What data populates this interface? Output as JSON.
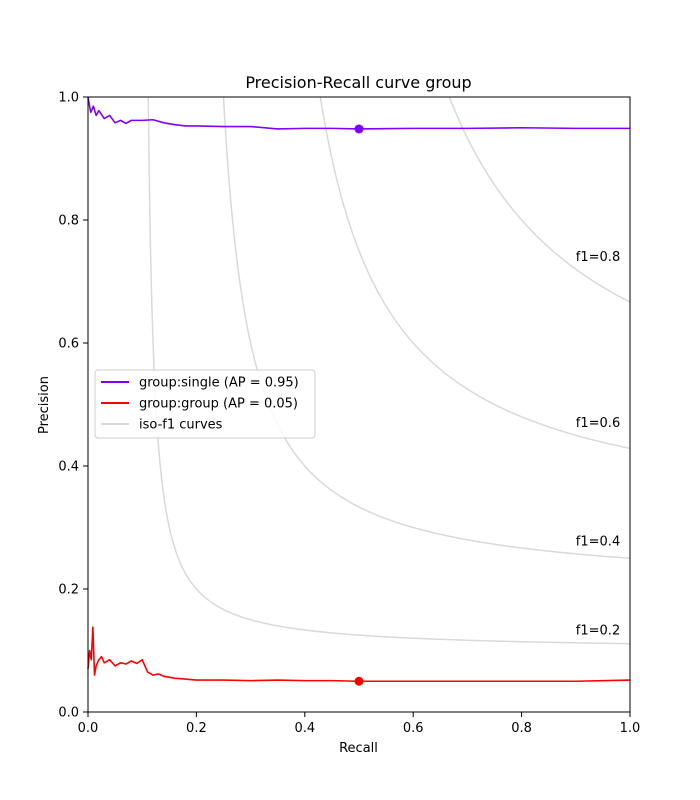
{
  "chart_data": {
    "type": "line",
    "title": "Precision-Recall curve group",
    "xlabel": "Recall",
    "ylabel": "Precision",
    "xlim": [
      0.0,
      1.0
    ],
    "ylim": [
      0.0,
      1.0
    ],
    "x_ticks": [
      "0.0",
      "0.2",
      "0.4",
      "0.6",
      "0.8",
      "1.0"
    ],
    "y_ticks": [
      "0.0",
      "0.2",
      "0.4",
      "0.6",
      "0.8",
      "1.0"
    ],
    "grid": false,
    "legend_position": "center-left",
    "series": [
      {
        "name": "group:single (AP = 0.95)",
        "color": "#8000ff",
        "x": [
          0.0,
          0.005,
          0.01,
          0.015,
          0.02,
          0.03,
          0.04,
          0.05,
          0.06,
          0.07,
          0.08,
          0.1,
          0.12,
          0.14,
          0.16,
          0.18,
          0.2,
          0.25,
          0.3,
          0.35,
          0.4,
          0.45,
          0.5,
          0.6,
          0.7,
          0.8,
          0.9,
          1.0
        ],
        "y": [
          1.0,
          0.975,
          0.985,
          0.97,
          0.978,
          0.965,
          0.97,
          0.958,
          0.962,
          0.957,
          0.962,
          0.962,
          0.963,
          0.958,
          0.955,
          0.953,
          0.953,
          0.952,
          0.952,
          0.948,
          0.949,
          0.949,
          0.948,
          0.949,
          0.949,
          0.95,
          0.949,
          0.949
        ],
        "marker": {
          "x": 0.5,
          "y": 0.948
        }
      },
      {
        "name": "group:group (AP = 0.05)",
        "color": "#ff0000",
        "x": [
          0.0,
          0.003,
          0.006,
          0.009,
          0.012,
          0.015,
          0.02,
          0.025,
          0.03,
          0.04,
          0.05,
          0.06,
          0.07,
          0.08,
          0.09,
          0.1,
          0.11,
          0.12,
          0.13,
          0.14,
          0.16,
          0.2,
          0.25,
          0.3,
          0.35,
          0.4,
          0.45,
          0.5,
          0.6,
          0.7,
          0.8,
          0.9,
          1.0
        ],
        "y": [
          0.07,
          0.1,
          0.085,
          0.138,
          0.06,
          0.075,
          0.085,
          0.09,
          0.08,
          0.085,
          0.075,
          0.08,
          0.078,
          0.083,
          0.079,
          0.085,
          0.065,
          0.06,
          0.062,
          0.058,
          0.055,
          0.052,
          0.052,
          0.051,
          0.052,
          0.051,
          0.051,
          0.05,
          0.05,
          0.05,
          0.05,
          0.05,
          0.052
        ],
        "marker": {
          "x": 0.5,
          "y": 0.05
        }
      }
    ],
    "iso_f1": {
      "legend_label": "iso-f1 curves",
      "color": "#d9d9d9",
      "values": [
        0.2,
        0.4,
        0.6,
        0.8
      ],
      "labels": [
        "f1=0.2",
        "f1=0.4",
        "f1=0.6",
        "f1=0.8"
      ]
    }
  }
}
